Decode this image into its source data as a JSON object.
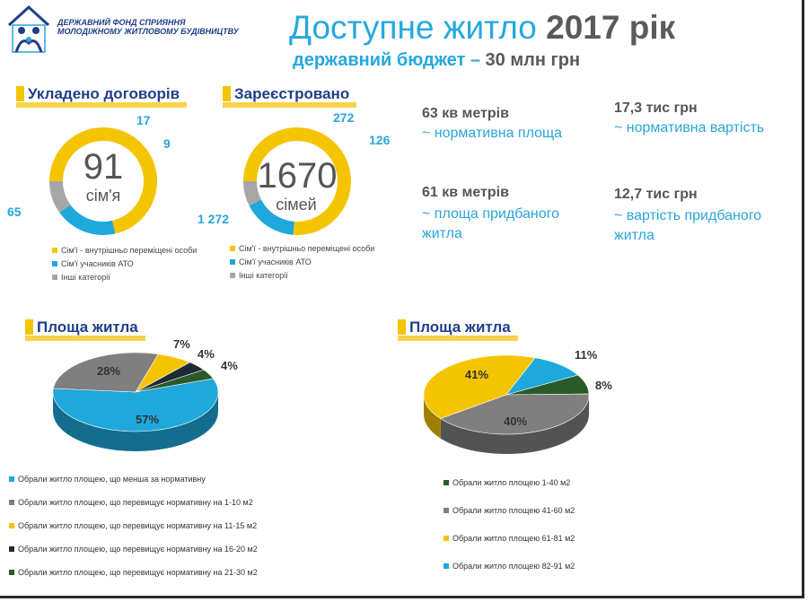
{
  "header": {
    "org_line1": "ДЕРЖАВНИЙ ФОНД СПРИЯННЯ",
    "org_line2": "МОЛОДІЖНОМУ ЖИТЛОВОМУ БУДІВНИЦТВУ",
    "title_main": "Доступне житло ",
    "title_year": "2017 рік",
    "subtitle_main": "державний бюджет – ",
    "subtitle_value": "30 млн грн"
  },
  "stats": {
    "a_value": "63 кв метрів",
    "a_label": "~ нормативна площа",
    "b_value": "17,3 тис грн",
    "b_label": "~ нормативна вартість",
    "c_value": "61 кв метрів",
    "c_label1": "~ площа придбаного",
    "c_label2": "житла",
    "d_value": "12,7 тис грн",
    "d_label1": "~ вартість придбаного",
    "d_label2": "житла"
  },
  "colors": {
    "yellow": "#f5c400",
    "blue": "#1ea8dc",
    "gray": "#a6a6a6",
    "dark": "#1f2a36",
    "green": "#2b5a2a",
    "gray_dark": "#7f7f7f"
  },
  "chart_data": [
    {
      "type": "pie",
      "variant": "donut",
      "title": "Укладено договорів",
      "center_value": "91",
      "center_label": "сім'я",
      "categories": [
        "Сім'ї - внутрішньо переміщені особи",
        "Сім'ї учасників АТО",
        "Інші категорії"
      ],
      "values": [
        65,
        17,
        9
      ],
      "value_labels": [
        "65",
        "17",
        "9"
      ]
    },
    {
      "type": "pie",
      "variant": "donut",
      "title": "Зареєстровано",
      "center_value": "1670",
      "center_label": "сімей",
      "categories": [
        "Сім'ї - внутрішньо переміщені особи",
        "Сім'ї учасників АТО",
        "Інші категорії"
      ],
      "values": [
        1272,
        272,
        126
      ],
      "value_labels": [
        "1 272",
        "272",
        "126"
      ]
    },
    {
      "type": "pie",
      "variant": "3d",
      "title": "Площа житла",
      "categories": [
        "Обрали житло площею, що менша за нормативну",
        "Обрали житло площею, що перевищує нормативну на 1-10  м2",
        "Обрали житло площею, що перевищує нормативну на 11-15  м2",
        "Обрали житло площею, що перевищує нормативну на 16-20   м2",
        "Обрали житло площею, що перевищує нормативну на 21-30 м2"
      ],
      "values": [
        57,
        28,
        7,
        4,
        4
      ],
      "value_labels": [
        "57%",
        "28%",
        "7%",
        "4%",
        "4%"
      ]
    },
    {
      "type": "pie",
      "variant": "3d",
      "title": "Площа житла",
      "categories": [
        "Обрали житло площею 1-40 м2",
        "Обрали житло площею 41-60 м2",
        "Обрали житло площею 61-81 м2",
        "Обрали житло площею 82-91 м2"
      ],
      "values": [
        8,
        40,
        41,
        11
      ],
      "value_labels": [
        "8%",
        "40%",
        "41%",
        "11%"
      ]
    }
  ]
}
